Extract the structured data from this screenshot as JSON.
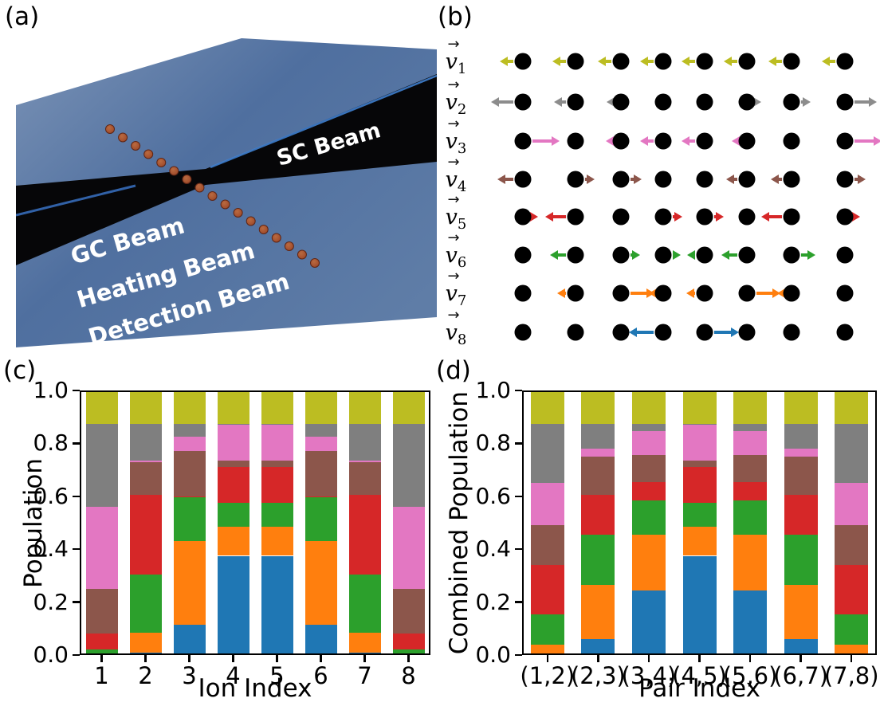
{
  "figure": {
    "panel_labels": {
      "a": "(a)",
      "b": "(b)",
      "c": "(c)",
      "d": "(d)"
    }
  },
  "panel_a": {
    "labels": {
      "sc_beam": "SC Beam",
      "gc_beam": "GC Beam",
      "heating_beam": "Heating Beam",
      "detection_beam": "Detection Beam"
    },
    "colors": {
      "slab_light": "#7b93b6",
      "slab_mid": "#4f6f9f",
      "slab_low": "#5f7da7",
      "beam_band": "#060608",
      "band_highlight": "#4285d8",
      "ion_fill": "#a34f2e",
      "ion_edge": "#5e2616"
    },
    "ion_count": 17
  },
  "panel_b": {
    "vector_arrow_glyph": "→",
    "label_base": "v",
    "dot_color": "#000000",
    "modes": [
      {
        "sub": "1",
        "color": "#bcbd22",
        "arrows": [
          -17,
          -17,
          -17,
          -17,
          -17,
          -17,
          -17,
          -17
        ]
      },
      {
        "sub": "2",
        "color": "#8c8c8c",
        "arrows": [
          -28,
          -15,
          -6,
          0,
          0,
          6,
          12,
          28
        ]
      },
      {
        "sub": "3",
        "color": "#e377c2",
        "arrows": [
          34,
          0,
          -7,
          -17,
          -17,
          -7,
          0,
          34
        ]
      },
      {
        "sub": "4",
        "color": "#8c564b",
        "arrows": [
          -20,
          12,
          14,
          0,
          0,
          -14,
          -14,
          14
        ]
      },
      {
        "sub": "5",
        "color": "#d62728",
        "arrows": [
          7,
          -26,
          0,
          12,
          12,
          0,
          -26,
          7
        ]
      },
      {
        "sub": "6",
        "color": "#2ca02c",
        "arrows": [
          0,
          -20,
          12,
          10,
          -10,
          -20,
          18,
          0
        ]
      },
      {
        "sub": "7",
        "color": "#ff7f0e",
        "arrows": [
          0,
          -11,
          30,
          -6,
          -11,
          30,
          -6,
          0
        ]
      },
      {
        "sub": "8",
        "color": "#1f77b4",
        "arrows": [
          0,
          0,
          0,
          -31,
          31,
          0,
          0,
          0
        ]
      }
    ]
  },
  "chart_data": [
    {
      "type": "bar",
      "stacked": true,
      "title": "",
      "xlabel": "Ion Index",
      "ylabel": "Population",
      "categories": [
        "1",
        "2",
        "3",
        "4",
        "5",
        "6",
        "7",
        "8"
      ],
      "ytick_labels": [
        "0.0",
        "0.2",
        "0.4",
        "0.6",
        "0.8",
        "1.0"
      ],
      "ylim": [
        0,
        1
      ],
      "grid": false,
      "legend": "none",
      "series_order": "bottom-to-top",
      "series": [
        {
          "name": "v8",
          "color": "#1f77b4",
          "values": [
            0,
            0.01,
            0.115,
            0.375,
            0.375,
            0.115,
            0.01,
            0
          ]
        },
        {
          "name": "v7",
          "color": "#ff7f0e",
          "values": [
            0,
            0.075,
            0.315,
            0.11,
            0.11,
            0.315,
            0.075,
            0
          ]
        },
        {
          "name": "v6",
          "color": "#2ca02c",
          "values": [
            0.02,
            0.22,
            0.165,
            0.09,
            0.09,
            0.165,
            0.22,
            0.02
          ]
        },
        {
          "name": "v5",
          "color": "#d62728",
          "values": [
            0.06,
            0.3,
            0.005,
            0.135,
            0.135,
            0.005,
            0.3,
            0.06
          ]
        },
        {
          "name": "v4",
          "color": "#8c564b",
          "values": [
            0.17,
            0.125,
            0.17,
            0.025,
            0.025,
            0.17,
            0.125,
            0.17
          ]
        },
        {
          "name": "v3",
          "color": "#e377c2",
          "values": [
            0.31,
            0.005,
            0.055,
            0.135,
            0.135,
            0.055,
            0.005,
            0.31
          ]
        },
        {
          "name": "v2",
          "color": "#7f7f7f",
          "values": [
            0.315,
            0.14,
            0.05,
            0.005,
            0.005,
            0.05,
            0.14,
            0.315
          ]
        },
        {
          "name": "v1",
          "color": "#bcbd22",
          "values": [
            0.125,
            0.125,
            0.125,
            0.125,
            0.125,
            0.125,
            0.125,
            0.125
          ]
        }
      ]
    },
    {
      "type": "bar",
      "stacked": true,
      "title": "",
      "xlabel": "Pair Index",
      "ylabel": "Combined Population",
      "categories": [
        "(1,2)",
        "(2,3)",
        "(3,4)",
        "(4,5)",
        "(5,6)",
        "(6,7)",
        "(7,8)"
      ],
      "ytick_labels": [
        "0.0",
        "0.2",
        "0.4",
        "0.6",
        "0.8",
        "1.0"
      ],
      "ylim": [
        0,
        1
      ],
      "grid": false,
      "legend": "none",
      "series_order": "bottom-to-top",
      "series": [
        {
          "name": "v8",
          "color": "#1f77b4",
          "values": [
            0,
            0.06,
            0.245,
            0.375,
            0.245,
            0.06,
            0
          ]
        },
        {
          "name": "v7",
          "color": "#ff7f0e",
          "values": [
            0.04,
            0.205,
            0.21,
            0.11,
            0.21,
            0.205,
            0.04
          ]
        },
        {
          "name": "v6",
          "color": "#2ca02c",
          "values": [
            0.115,
            0.19,
            0.13,
            0.09,
            0.13,
            0.19,
            0.115
          ]
        },
        {
          "name": "v5",
          "color": "#d62728",
          "values": [
            0.185,
            0.15,
            0.07,
            0.135,
            0.07,
            0.15,
            0.185
          ]
        },
        {
          "name": "v4",
          "color": "#8c564b",
          "values": [
            0.15,
            0.145,
            0.1,
            0.025,
            0.1,
            0.145,
            0.15
          ]
        },
        {
          "name": "v3",
          "color": "#e377c2",
          "values": [
            0.16,
            0.03,
            0.09,
            0.135,
            0.09,
            0.03,
            0.16
          ]
        },
        {
          "name": "v2",
          "color": "#7f7f7f",
          "values": [
            0.225,
            0.095,
            0.03,
            0.005,
            0.03,
            0.095,
            0.225
          ]
        },
        {
          "name": "v1",
          "color": "#bcbd22",
          "values": [
            0.125,
            0.125,
            0.125,
            0.125,
            0.125,
            0.125,
            0.125
          ]
        }
      ]
    }
  ]
}
